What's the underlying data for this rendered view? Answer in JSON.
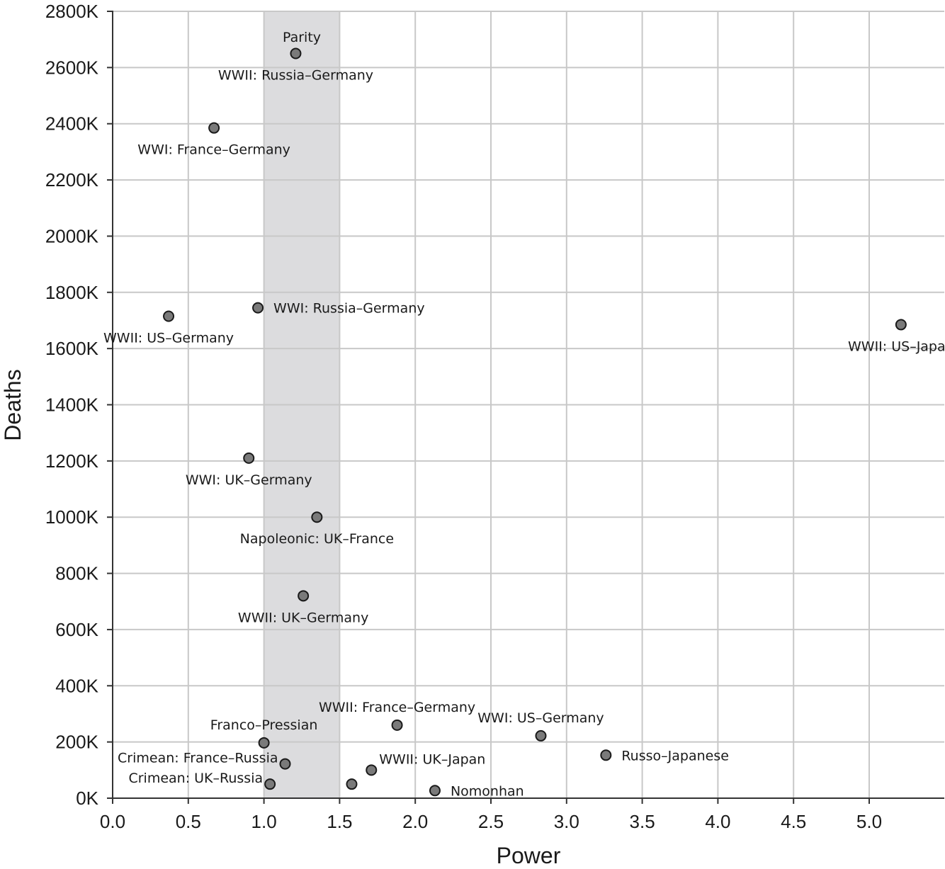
{
  "chart_data": {
    "type": "scatter",
    "xlabel": "Power",
    "ylabel": "Deaths",
    "xlim": [
      0,
      5.5
    ],
    "ylim": [
      0,
      2800
    ],
    "x_ticks": [
      0,
      0.5,
      1,
      1.5,
      2,
      2.5,
      3,
      3.5,
      4,
      4.5,
      5
    ],
    "x_tick_labels": [
      "0.0",
      "0.5",
      "1.0",
      "1.5",
      "2.0",
      "2.5",
      "3.0",
      "3.5",
      "4.0",
      "4.5",
      "5.0"
    ],
    "y_ticks": [
      0,
      200,
      400,
      600,
      800,
      1000,
      1200,
      1400,
      1600,
      1800,
      2000,
      2200,
      2400,
      2600,
      2800
    ],
    "y_tick_labels": [
      "0K",
      "200K",
      "400K",
      "600K",
      "800K",
      "1000K",
      "1200K",
      "1400K",
      "1600K",
      "1800K",
      "2000K",
      "2200K",
      "2400K",
      "2600K",
      "2800K"
    ],
    "grid": true,
    "shaded_region": {
      "x_start": 1.0,
      "x_end": 1.5,
      "label": "Parity"
    },
    "points": [
      {
        "x": 1.21,
        "y": 2650,
        "label": "WWII: Russia–Germany",
        "label_pos": "below"
      },
      {
        "x": 0.67,
        "y": 2385,
        "label": "WWI: France–Germany",
        "label_pos": "below"
      },
      {
        "x": 0.96,
        "y": 1745,
        "label": "WWI: Russia–Germany",
        "label_pos": "right"
      },
      {
        "x": 0.37,
        "y": 1715,
        "label": "WWII: US–Germany",
        "label_pos": "below"
      },
      {
        "x": 5.21,
        "y": 1685,
        "label": "WWII: US–Japan",
        "label_pos": "below"
      },
      {
        "x": 0.9,
        "y": 1210,
        "label": "WWI: UK–Germany",
        "label_pos": "below"
      },
      {
        "x": 1.35,
        "y": 1000,
        "label": "Napoleonic: UK–France",
        "label_pos": "below"
      },
      {
        "x": 1.26,
        "y": 720,
        "label": "WWII: UK–Germany",
        "label_pos": "below"
      },
      {
        "x": 1.88,
        "y": 260,
        "label": "WWII: France–Germany",
        "label_pos": "above"
      },
      {
        "x": 2.83,
        "y": 222,
        "label": "WWI: US–Germany",
        "label_pos": "above"
      },
      {
        "x": 1.0,
        "y": 197,
        "label": "Franco–Pressian",
        "label_pos": "above"
      },
      {
        "x": 3.26,
        "y": 153,
        "label": "Russo–Japanese",
        "label_pos": "right"
      },
      {
        "x": 1.14,
        "y": 122,
        "label": "Crimean: France–Russia",
        "label_pos": "left"
      },
      {
        "x": 1.71,
        "y": 100,
        "label": "WWII: UK–Japan",
        "label_pos": "above-right"
      },
      {
        "x": 1.58,
        "y": 50,
        "label": "",
        "label_pos": "none"
      },
      {
        "x": 1.04,
        "y": 50,
        "label": "Crimean: UK–Russia",
        "label_pos": "left"
      },
      {
        "x": 2.13,
        "y": 27,
        "label": "Nomonhan",
        "label_pos": "right"
      }
    ]
  }
}
